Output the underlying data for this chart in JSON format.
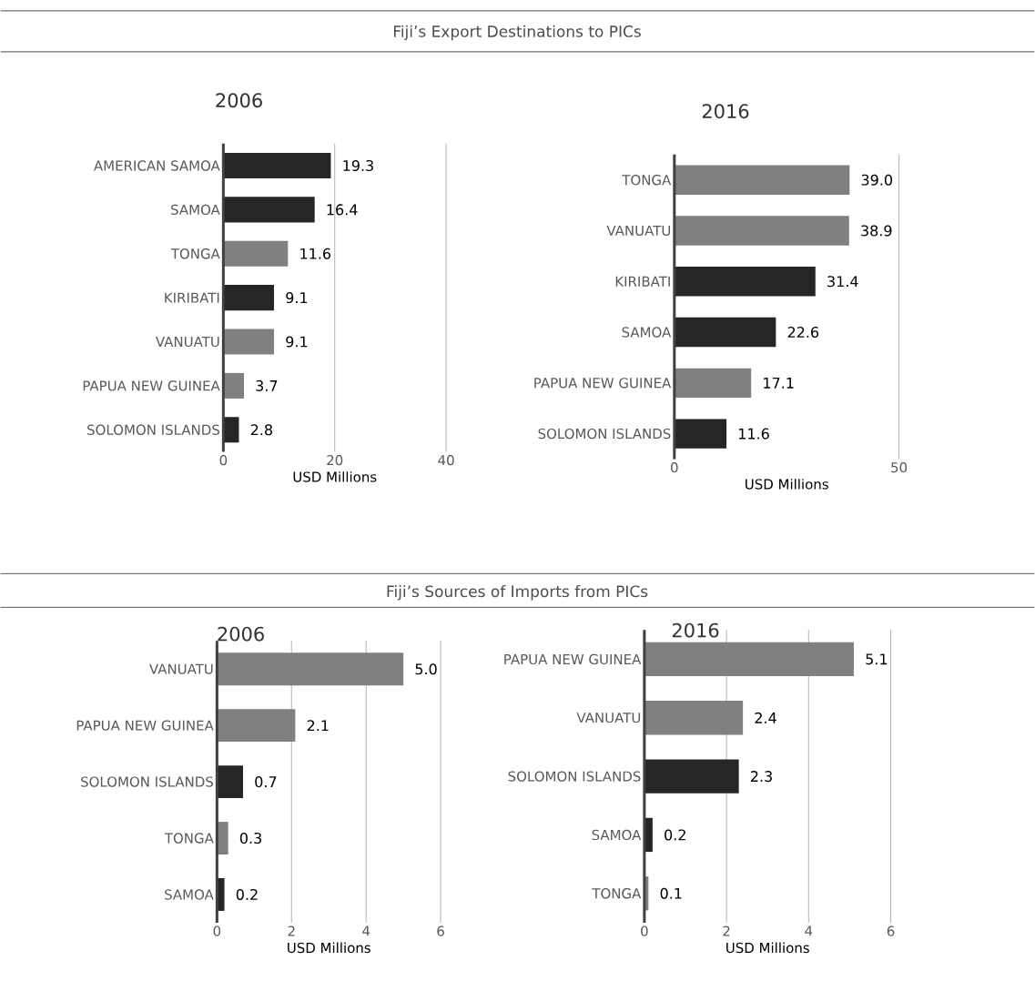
{
  "chart_data": [
    {
      "type": "bar",
      "orientation": "horizontal",
      "title": "Fiji’s Export Destinations to PICs",
      "subtitle": "2006",
      "xlabel": "USD Millions",
      "categories": [
        "AMERICAN SAMOA",
        "SAMOA",
        "TONGA",
        "KIRIBATI",
        "VANUATU",
        "PAPUA NEW GUINEA",
        "SOLOMON ISLANDS"
      ],
      "values": [
        19.3,
        16.4,
        11.6,
        9.1,
        9.1,
        3.7,
        2.8
      ],
      "value_labels": [
        "19.3",
        "16.4",
        "11.6",
        "9.1",
        "9.1",
        "3.7",
        "2.8"
      ],
      "colors": [
        "#262626",
        "#262626",
        "#808080",
        "#262626",
        "#808080",
        "#808080",
        "#262626"
      ],
      "xlim": [
        0,
        40
      ],
      "xticks": [
        0,
        20,
        40
      ],
      "grid": "x"
    },
    {
      "type": "bar",
      "orientation": "horizontal",
      "subtitle": "2016",
      "xlabel": "USD Millions",
      "categories": [
        "TONGA",
        "VANUATU",
        "KIRIBATI",
        "SAMOA",
        "PAPUA NEW GUINEA",
        "SOLOMON ISLANDS"
      ],
      "values": [
        39.0,
        38.9,
        31.4,
        22.6,
        17.1,
        11.6
      ],
      "value_labels": [
        "39.0",
        "38.9",
        "31.4",
        "22.6",
        "17.1",
        "11.6"
      ],
      "colors": [
        "#808080",
        "#808080",
        "#262626",
        "#262626",
        "#808080",
        "#262626"
      ],
      "xlim": [
        0,
        50
      ],
      "xticks": [
        0,
        50
      ],
      "grid": "x"
    },
    {
      "type": "bar",
      "orientation": "horizontal",
      "title": "Fiji’s Sources of Imports from PICs",
      "subtitle": "2006",
      "xlabel": "USD Millions",
      "categories": [
        "VANUATU",
        "PAPUA NEW GUINEA",
        "SOLOMON ISLANDS",
        "TONGA",
        "SAMOA"
      ],
      "values": [
        5.0,
        2.1,
        0.7,
        0.3,
        0.2
      ],
      "value_labels": [
        "5.0",
        "2.1",
        "0.7",
        "0.3",
        "0.2"
      ],
      "colors": [
        "#808080",
        "#808080",
        "#262626",
        "#808080",
        "#262626"
      ],
      "xlim": [
        0,
        6
      ],
      "xticks": [
        0,
        2,
        4,
        6
      ],
      "grid": "x"
    },
    {
      "type": "bar",
      "orientation": "horizontal",
      "subtitle": "2016",
      "xlabel": "USD Millions",
      "categories": [
        "PAPUA NEW GUINEA",
        "VANUATU",
        "SOLOMON ISLANDS",
        "SAMOA",
        "TONGA"
      ],
      "values": [
        5.1,
        2.4,
        2.3,
        0.2,
        0.1
      ],
      "value_labels": [
        "5.1",
        "2.4",
        "2.3",
        "0.2",
        "0.1"
      ],
      "colors": [
        "#808080",
        "#808080",
        "#262626",
        "#262626",
        "#808080"
      ],
      "xlim": [
        0,
        6
      ],
      "xticks": [
        0,
        2,
        4,
        6
      ],
      "grid": "x"
    }
  ]
}
